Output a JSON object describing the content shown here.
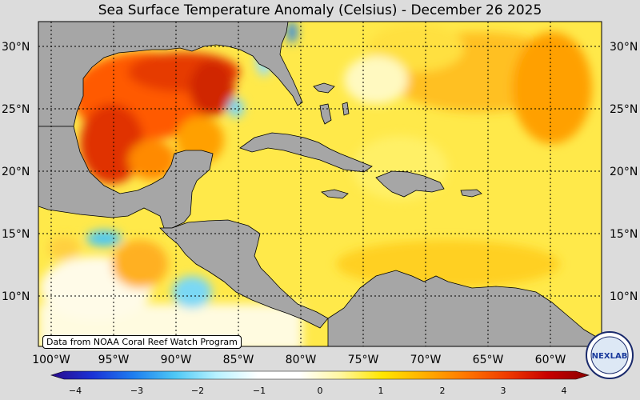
{
  "title": "Sea Surface Temperature Anomaly (Celsius) - December 26 2025",
  "source_note": "Data from NOAA Coral Reef Watch Program",
  "logo_text": "NEXLAB",
  "lat_ticks": [
    "30°N",
    "25°N",
    "20°N",
    "15°N",
    "10°N"
  ],
  "lon_ticks": [
    "100°W",
    "95°W",
    "90°W",
    "85°W",
    "80°W",
    "75°W",
    "70°W",
    "65°W",
    "60°W"
  ],
  "colorbar": {
    "min": -4,
    "max": 4,
    "tick_labels": [
      "−4",
      "−3",
      "−2",
      "−1",
      "0",
      "1",
      "2",
      "3",
      "4"
    ],
    "stops": [
      "#2a0a8c",
      "#1a32d6",
      "#1e7ff0",
      "#4ec8f5",
      "#b8f2ff",
      "#ffffff",
      "#ffffff",
      "#fff7a0",
      "#ffe600",
      "#ffb000",
      "#ff7800",
      "#f03c00",
      "#c80000",
      "#8c0000"
    ]
  },
  "colors": {
    "land": "#a6a6a6",
    "ocean_base": "#ffe94a",
    "hot": "#e63a00",
    "cold": "#4ec8f5"
  }
}
